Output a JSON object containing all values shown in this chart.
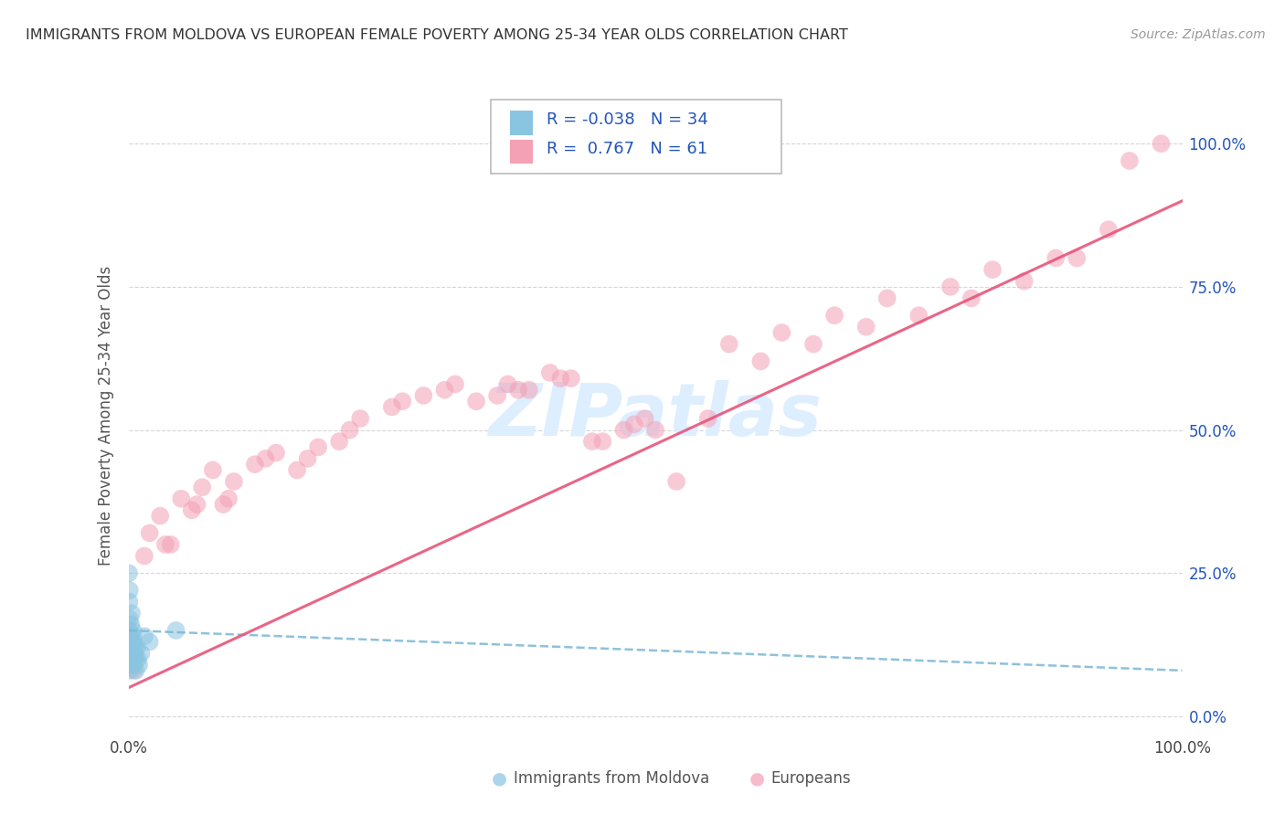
{
  "title": "IMMIGRANTS FROM MOLDOVA VS EUROPEAN FEMALE POVERTY AMONG 25-34 YEAR OLDS CORRELATION CHART",
  "source": "Source: ZipAtlas.com",
  "ylabel": "Female Poverty Among 25-34 Year Olds",
  "ytick_labels": [
    "0.0%",
    "25.0%",
    "50.0%",
    "75.0%",
    "100.0%"
  ],
  "ytick_values": [
    0,
    25,
    50,
    75,
    100
  ],
  "legend_label1": "Immigrants from Moldova",
  "legend_label2": "Europeans",
  "legend_r1": "-0.038",
  "legend_n1": "34",
  "legend_r2": "0.767",
  "legend_n2": "61",
  "color_blue": "#89c4e1",
  "color_blue_dark": "#5a9fc0",
  "color_pink": "#f4a0b5",
  "color_pink_line": "#e8547a",
  "color_blue_line": "#7ab8d4",
  "color_title": "#333333",
  "color_source": "#999999",
  "color_grid": "#cccccc",
  "color_r_value": "#2255bb",
  "color_ytick": "#2255bb",
  "watermark_color": "#ddeeff",
  "xlim": [
    0,
    100
  ],
  "ylim": [
    -3,
    108
  ],
  "moldova_x": [
    0.05,
    0.08,
    0.12,
    0.06,
    0.15,
    0.1,
    0.2,
    0.18,
    0.25,
    0.22,
    0.3,
    0.28,
    0.35,
    0.32,
    0.4,
    0.38,
    0.45,
    0.42,
    0.5,
    0.48,
    0.55,
    0.6,
    0.65,
    0.7,
    0.8,
    0.9,
    1.0,
    1.2,
    1.5,
    2.0,
    0.03,
    0.07,
    0.11,
    4.5
  ],
  "moldova_y": [
    10,
    13,
    8,
    15,
    12,
    17,
    14,
    11,
    16,
    9,
    18,
    13,
    12,
    10,
    15,
    11,
    14,
    10,
    13,
    9,
    12,
    11,
    10,
    8,
    12,
    10,
    9,
    11,
    14,
    13,
    25,
    20,
    22,
    15
  ],
  "european_x": [
    0.5,
    1.5,
    2.0,
    3.0,
    4.0,
    5.0,
    6.0,
    7.0,
    8.0,
    9.0,
    10.0,
    12.0,
    14.0,
    16.0,
    18.0,
    20.0,
    22.0,
    25.0,
    28.0,
    30.0,
    33.0,
    36.0,
    38.0,
    40.0,
    42.0,
    45.0,
    48.0,
    50.0,
    55.0,
    60.0,
    65.0,
    70.0,
    75.0,
    80.0,
    85.0,
    90.0,
    95.0,
    3.5,
    6.5,
    9.5,
    13.0,
    17.0,
    21.0,
    26.0,
    31.0,
    35.0,
    37.0,
    41.0,
    44.0,
    47.0,
    49.0,
    52.0,
    57.0,
    62.0,
    67.0,
    72.0,
    78.0,
    82.0,
    88.0,
    93.0,
    98.0
  ],
  "european_y": [
    8,
    28,
    32,
    35,
    30,
    38,
    36,
    40,
    43,
    37,
    41,
    44,
    46,
    43,
    47,
    48,
    52,
    54,
    56,
    57,
    55,
    58,
    57,
    60,
    59,
    48,
    51,
    50,
    52,
    62,
    65,
    68,
    70,
    73,
    76,
    80,
    97,
    30,
    37,
    38,
    45,
    45,
    50,
    55,
    58,
    56,
    57,
    59,
    48,
    50,
    52,
    41,
    65,
    67,
    70,
    73,
    75,
    78,
    80,
    85,
    100
  ]
}
